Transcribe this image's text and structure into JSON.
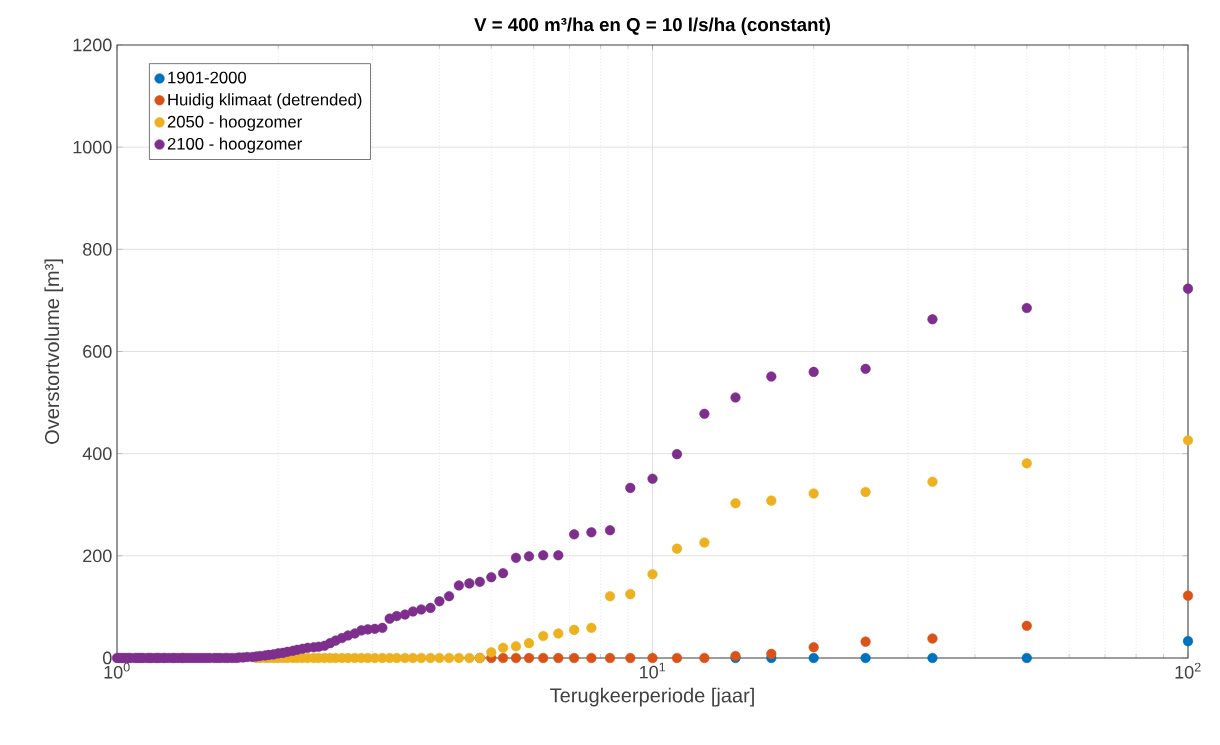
{
  "chart_data": {
    "type": "scatter",
    "title": "V = 400 m³/ha en Q = 10 l/s/ha (constant)",
    "xlabel": "Terugkeerperiode [jaar]",
    "ylabel": "Overstortvolume [m³]",
    "log": "x",
    "grid": true,
    "legend": "top left",
    "marker": "circle",
    "xlim": [
      1,
      100
    ],
    "xticks": [
      {
        "value": 1,
        "label": "10$^{0}$"
      },
      {
        "value": 10,
        "label": "10$^{1}$"
      },
      {
        "value": 100,
        "label": "10$^{2}$"
      }
    ],
    "ylim": [
      0,
      1200
    ],
    "yticks": [
      0,
      200,
      400,
      600,
      800,
      1000,
      1200
    ],
    "x": [
      100,
      50,
      33.33,
      25,
      20,
      16.67,
      14.29,
      12.5,
      11.11,
      10,
      9.09,
      8.33,
      7.69,
      7.14,
      6.67,
      6.25,
      5.88,
      5.56,
      5.26,
      5,
      4.76,
      4.55,
      4.35,
      4.17,
      4,
      3.85,
      3.7,
      3.57,
      3.45,
      3.33,
      3.23,
      3.13,
      3.03,
      2.94,
      2.86,
      2.78,
      2.7,
      2.63,
      2.56,
      2.5,
      2.44,
      2.38,
      2.33,
      2.27,
      2.22,
      2.17,
      2.13,
      2.08,
      2.04,
      2,
      1.96,
      1.92,
      1.89,
      1.85,
      1.82,
      1.79,
      1.75,
      1.72,
      1.69,
      1.67,
      1.64,
      1.61,
      1.59,
      1.56,
      1.54,
      1.52,
      1.49,
      1.47,
      1.45,
      1.43,
      1.41,
      1.39,
      1.37,
      1.35,
      1.33,
      1.32,
      1.3,
      1.28,
      1.27,
      1.25,
      1.23,
      1.22,
      1.2,
      1.19,
      1.18,
      1.16,
      1.15,
      1.14,
      1.12,
      1.11,
      1.1,
      1.09,
      1.08,
      1.06,
      1.05,
      1.04,
      1.03,
      1.02,
      1.01,
      1
    ],
    "series": [
      {
        "name": "1901-2000",
        "color": "#0072bd",
        "values": [
          33,
          0,
          0,
          0,
          0,
          0,
          0,
          null,
          null,
          null,
          null,
          null,
          null,
          null,
          null,
          null,
          null,
          null,
          null,
          null,
          null,
          null,
          null,
          null,
          null,
          null,
          null,
          null,
          null,
          null,
          null,
          null,
          null,
          null,
          null,
          null,
          null,
          null,
          null,
          null,
          null,
          null,
          null,
          null,
          null,
          null,
          null,
          null,
          null,
          null,
          null,
          null,
          null,
          null,
          null,
          null,
          null,
          null,
          null,
          null,
          null,
          null,
          null,
          null,
          null,
          null,
          null,
          null,
          null,
          null,
          null,
          null,
          null,
          null,
          null,
          null,
          null,
          null,
          null,
          null,
          null,
          null,
          null,
          null,
          null,
          null,
          null,
          null,
          null,
          null,
          null,
          null,
          null,
          null,
          null,
          null,
          null,
          null,
          null,
          null
        ]
      },
      {
        "name": "Huidig klimaat (detrended)",
        "color": "#d95319",
        "values": [
          122,
          63,
          38,
          32,
          21,
          8,
          4,
          0,
          0,
          0,
          0,
          0,
          0,
          0,
          0,
          0,
          0,
          0,
          0,
          0,
          0,
          null,
          null,
          null,
          null,
          null,
          null,
          null,
          null,
          null,
          null,
          null,
          null,
          null,
          null,
          null,
          null,
          null,
          null,
          null,
          null,
          null,
          null,
          null,
          null,
          null,
          null,
          null,
          null,
          null,
          null,
          null,
          null,
          null,
          null,
          null,
          null,
          null,
          null,
          null,
          null,
          null,
          null,
          null,
          null,
          null,
          null,
          null,
          null,
          null,
          null,
          null,
          null,
          null,
          null,
          null,
          null,
          null,
          null,
          null,
          null,
          null,
          null,
          null,
          null,
          null,
          null,
          null,
          null,
          null,
          null,
          null,
          null,
          null,
          null,
          null,
          null,
          null,
          null,
          null
        ]
      },
      {
        "name": "2050 - hoogzomer",
        "color": "#edb120",
        "values": [
          426,
          381,
          345,
          325,
          322,
          308,
          303,
          226,
          214,
          164,
          125,
          121,
          59,
          55,
          48,
          43,
          29,
          23,
          20,
          11,
          0,
          0,
          0,
          0,
          0,
          0,
          0,
          0,
          0,
          0,
          0,
          0,
          0,
          0,
          0,
          0,
          0,
          0,
          0,
          0,
          0,
          0,
          0,
          0,
          0,
          0,
          0,
          0,
          0,
          0,
          0,
          0,
          0,
          0,
          0,
          null,
          null,
          null,
          null,
          null,
          null,
          null,
          null,
          null,
          null,
          null,
          null,
          null,
          null,
          null,
          null,
          null,
          null,
          null,
          null,
          null,
          null,
          null,
          null,
          null,
          null,
          null,
          null,
          null,
          null,
          null,
          null,
          null,
          null,
          null,
          null,
          null,
          null,
          null,
          null,
          null,
          null,
          null,
          null,
          null
        ]
      },
      {
        "name": "2100 - hoogzomer",
        "color": "#7e2f8e",
        "values": [
          723,
          685,
          663,
          566,
          560,
          551,
          510,
          478,
          399,
          351,
          333,
          250,
          246,
          242,
          201,
          201,
          199,
          196,
          166,
          158,
          149,
          146,
          142,
          121,
          111,
          98,
          95,
          91,
          85,
          82,
          77,
          59,
          57,
          56,
          54,
          48,
          44,
          39,
          34,
          29,
          24,
          22,
          21,
          20,
          18,
          16,
          14,
          12,
          10,
          9,
          7,
          6,
          5,
          4,
          3,
          2,
          2,
          1,
          1,
          0,
          0,
          0,
          0,
          0,
          0,
          0,
          0,
          0,
          0,
          0,
          0,
          0,
          0,
          0,
          0,
          0,
          0,
          0,
          0,
          0,
          0,
          0,
          0,
          0,
          0,
          0,
          0,
          0,
          0,
          0,
          0,
          0,
          0,
          0,
          0,
          0,
          0,
          0,
          0,
          0
        ]
      }
    ]
  }
}
